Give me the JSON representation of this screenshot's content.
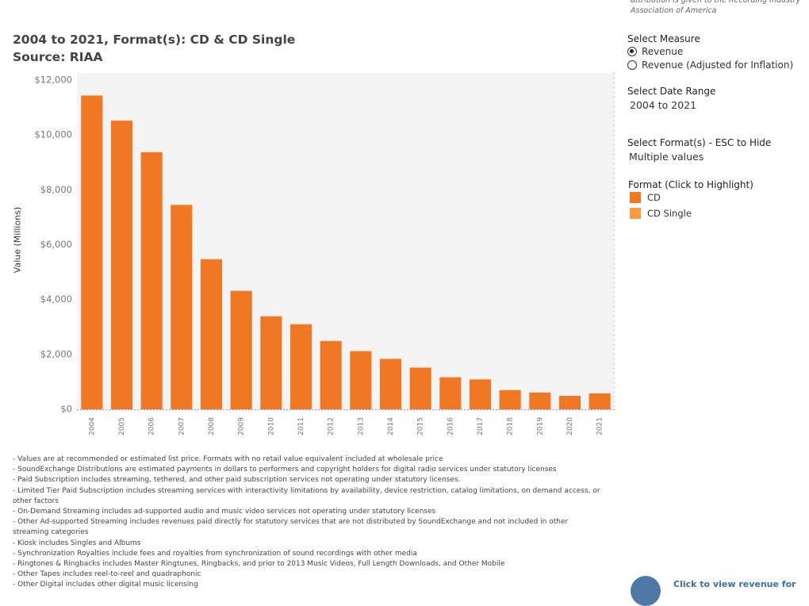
{
  "attribution": "attribution is given to the Recording Industry Association of America",
  "header": {
    "title": "2004 to 2021, Format(s): CD & CD Single",
    "source": "Source: RIAA"
  },
  "controls": {
    "measure_title": "Select Measure",
    "measure_options": [
      {
        "label": "Revenue",
        "selected": true
      },
      {
        "label": "Revenue (Adjusted for Inflation)",
        "selected": false
      }
    ],
    "date_title": "Select Date Range",
    "date_value": "2004 to 2021",
    "format_title": "Select Format(s) - ESC to Hide",
    "format_value": "Multiple values",
    "legend_title": "Format (Click to Highlight)",
    "legend": [
      {
        "label": "CD",
        "color": "#f07825"
      },
      {
        "label": "CD Single",
        "color": "#fd9b43"
      }
    ]
  },
  "chart_data": {
    "type": "bar",
    "ylabel": "Value (Millions)",
    "ylim": [
      0,
      12000
    ],
    "yticks": [
      0,
      2000,
      4000,
      6000,
      8000,
      10000,
      12000
    ],
    "ytick_labels": [
      "$0",
      "$2,000",
      "$4,000",
      "$6,000",
      "$8,000",
      "$10,000",
      "$12,000"
    ],
    "grid": false,
    "categories": [
      "2004",
      "2005",
      "2006",
      "2007",
      "2008",
      "2009",
      "2010",
      "2011",
      "2012",
      "2013",
      "2014",
      "2015",
      "2016",
      "2017",
      "2018",
      "2019",
      "2020",
      "2021"
    ],
    "series": [
      {
        "name": "CD",
        "color": "#f07825",
        "values": [
          11430,
          10520,
          9370,
          7450,
          5470,
          4320,
          3390,
          3100,
          2490,
          2120,
          1840,
          1520,
          1170,
          1090,
          700,
          610,
          490,
          580
        ]
      },
      {
        "name": "CD Single",
        "color": "#fd9b43",
        "values": [
          15,
          10,
          7,
          3,
          3,
          2,
          2,
          2,
          1,
          1,
          1,
          1,
          1,
          1,
          0,
          0,
          0,
          0
        ]
      }
    ]
  },
  "notes": [
    "- Values are at recommended or estimated list price. Formats with no retail value equivalent included at wholesale price",
    "- SoundExchange Distributions are estimated payments in dollars to performers and copyright holders for digital radio services under statutory licenses",
    "- Paid Subscription includes streaming, tethered, and other paid subscription services not operating under statutory licenses.",
    "- Limited Tier Paid Subscription includes streaming services with interactivity limitations by availability, device restriction, catalog limitations, on demand access, or other factors",
    "- On-Demand Streaming includes ad-supported audio and music video services not operating under statutory licenses",
    "- Other Ad-supported Streaming includes revenues paid directly for statutory services that are not distributed by SoundExchange and not included in other streaming categories",
    "- Kiosk includes Singles and Albums",
    "- Synchronization Royalties include fees and royalties from synchronization of sound recordings with other media",
    "- Ringtones & Ringbacks includes Master Ringtunes, Ringbacks, and prior to 2013 Music Videos, Full Length Downloads, and Other Mobile",
    "- Other Tapes includes reel-to-reel and quadraphonic",
    "- Other Digital includes other digital music licensing"
  ],
  "footer": {
    "view_link": "Click to view revenue for"
  }
}
